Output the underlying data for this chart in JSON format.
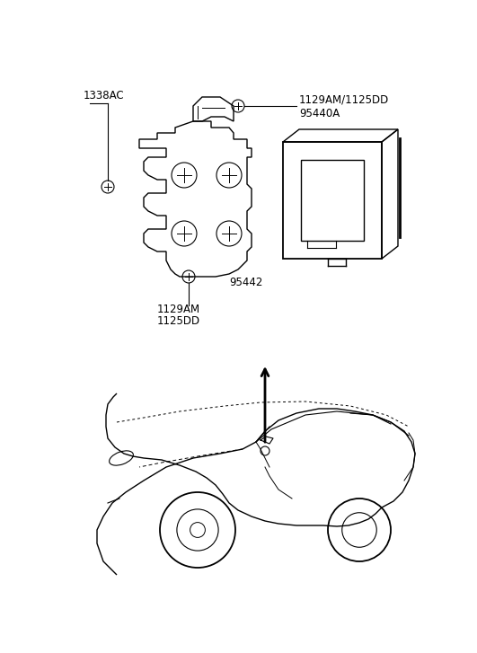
{
  "background_color": "#ffffff",
  "fig_width": 5.31,
  "fig_height": 7.27,
  "dpi": 100,
  "line_color": "#000000",
  "font_size": 8.5,
  "label_1338AC": "1338AC",
  "label_top_right_1": "1129AM/1125DD",
  "label_top_right_2": "95440A",
  "label_center": "95442",
  "label_bot_1": "1129AM",
  "label_bot_2": "1125DD"
}
